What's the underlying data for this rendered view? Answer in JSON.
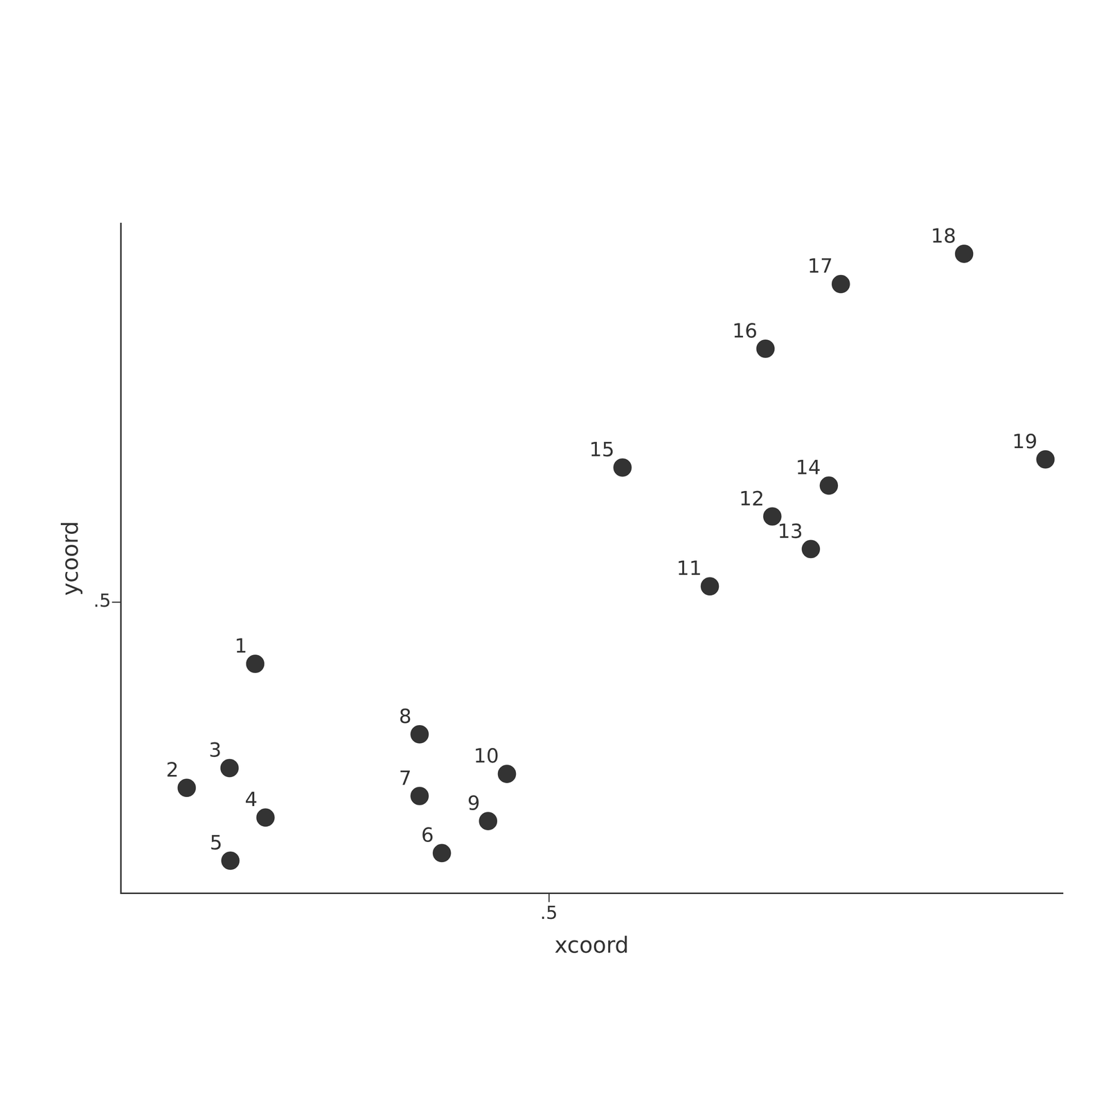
{
  "chart_data": {
    "type": "scatter",
    "x_label": "xcoord",
    "y_label": "ycoord",
    "labels": [
      "1",
      "2",
      "3",
      "4",
      "5",
      "6",
      "7",
      "8",
      "9",
      "10",
      "11",
      "12",
      "13",
      "14",
      "15",
      "16",
      "17",
      "18",
      "19"
    ],
    "x": [
      0.157,
      0.077,
      0.127,
      0.169,
      0.128,
      0.375,
      0.349,
      0.349,
      0.429,
      0.451,
      0.688,
      0.761,
      0.806,
      0.827,
      0.586,
      0.753,
      0.841,
      0.985,
      1.08
    ],
    "values": [
      0.394,
      0.181,
      0.215,
      0.13,
      0.056,
      0.069,
      0.167,
      0.273,
      0.124,
      0.205,
      0.527,
      0.647,
      0.591,
      0.7,
      0.731,
      0.935,
      1.046,
      1.098,
      0.745
    ],
    "xlim": [
      0,
      1.1
    ],
    "ylim": [
      0,
      1.15
    ],
    "xticks": [
      {
        "value": 0.5,
        "label": ".5"
      }
    ],
    "yticks": [
      {
        "value": 0.5,
        "label": ".5"
      }
    ],
    "color": "#333333",
    "marker": "circle",
    "grid": false
  }
}
